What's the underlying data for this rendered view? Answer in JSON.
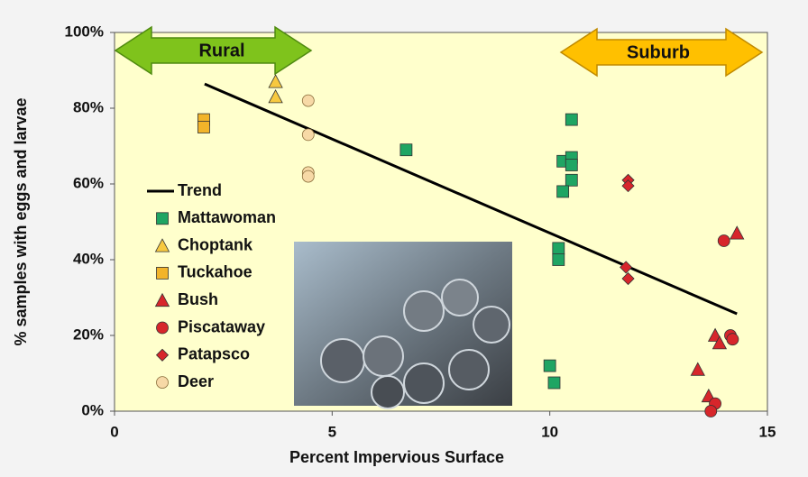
{
  "chart_data": {
    "type": "scatter",
    "xlabel": "Percent Impervious Surface",
    "ylabel": "% samples with eggs and larvae",
    "xlim": [
      0,
      15
    ],
    "ylim": [
      0,
      100
    ],
    "xticks": [
      0,
      5,
      10,
      15
    ],
    "yticks": [
      {
        "value": 0,
        "label": "0%"
      },
      {
        "value": 20,
        "label": "20%"
      },
      {
        "value": 40,
        "label": "40%"
      },
      {
        "value": 60,
        "label": "60%"
      },
      {
        "value": 80,
        "label": "80%"
      },
      {
        "value": 100,
        "label": "100%"
      }
    ],
    "annotations": [
      "Rural",
      "Suburb"
    ],
    "series": [
      {
        "name": "Trend",
        "color": "#000000",
        "marker": "line",
        "x": [
          2.07,
          14.3
        ],
        "values": [
          86.4,
          25.7
        ]
      },
      {
        "name": "Mattawoman",
        "color": "#1fa563",
        "marker": "square",
        "x": [
          6.7,
          10.5,
          10.3,
          10.5,
          10.5,
          10.5,
          10.3,
          10.2,
          10.2,
          10.0,
          10.1
        ],
        "values": [
          69,
          77,
          66,
          67,
          65,
          61,
          58,
          43,
          40,
          12,
          7.5
        ]
      },
      {
        "name": "Choptank",
        "color": "#f7c940",
        "marker": "triangle",
        "x": [
          3.7,
          3.7
        ],
        "values": [
          87,
          83
        ]
      },
      {
        "name": "Tuckahoe",
        "color": "#f2b42a",
        "marker": "square",
        "x": [
          2.05,
          2.05
        ],
        "values": [
          77,
          75
        ]
      },
      {
        "name": "Bush",
        "color": "#d7262b",
        "marker": "triangle",
        "x": [
          14.3,
          13.8,
          13.9,
          13.4,
          13.65
        ],
        "values": [
          47,
          20,
          18,
          11,
          4
        ]
      },
      {
        "name": "Piscataway",
        "color": "#d7262b",
        "marker": "circle",
        "x": [
          14.0,
          14.15,
          14.2,
          13.8,
          13.7
        ],
        "values": [
          45,
          20,
          19,
          2,
          0
        ]
      },
      {
        "name": "Patapsco",
        "color": "#d7262b",
        "marker": "diamond",
        "x": [
          11.8,
          11.8,
          11.75,
          11.8
        ],
        "values": [
          61,
          59.5,
          38,
          35
        ]
      },
      {
        "name": "Deer",
        "color": "#f7d9a6",
        "marker": "circle",
        "x": [
          4.45,
          4.45,
          4.45,
          4.45
        ],
        "values": [
          82,
          73,
          63,
          62
        ]
      }
    ]
  }
}
